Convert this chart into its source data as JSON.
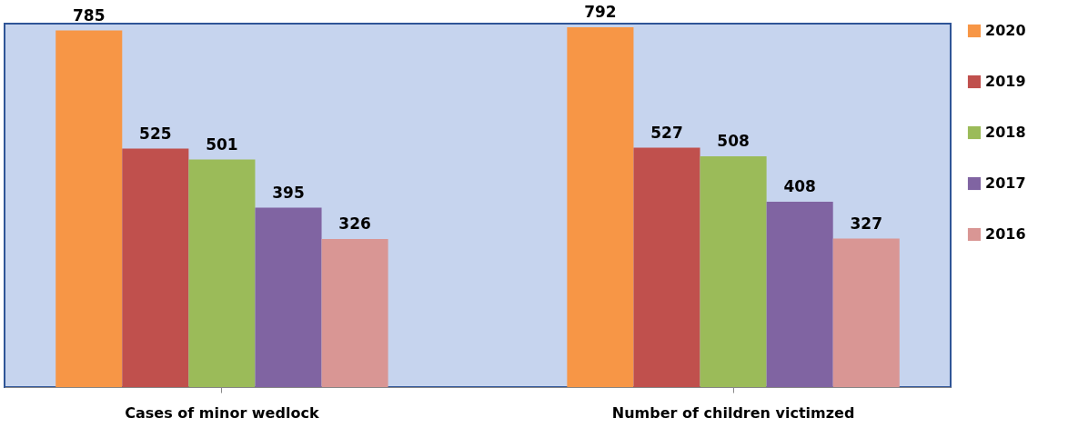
{
  "chart_data": {
    "type": "bar",
    "categories": [
      "Cases of minor wedlock",
      "Number of children victimzed"
    ],
    "series": [
      {
        "name": "2020",
        "color": "#f79646",
        "values": [
          785,
          792
        ]
      },
      {
        "name": "2019",
        "color": "#c0504d",
        "values": [
          525,
          527
        ]
      },
      {
        "name": "2018",
        "color": "#9bbb59",
        "values": [
          501,
          508
        ]
      },
      {
        "name": "2017",
        "color": "#8064a2",
        "values": [
          395,
          408
        ]
      },
      {
        "name": "2016",
        "color": "#d99694",
        "values": [
          326,
          327
        ]
      }
    ],
    "data_labels": true,
    "legend": "right",
    "grid": false
  }
}
